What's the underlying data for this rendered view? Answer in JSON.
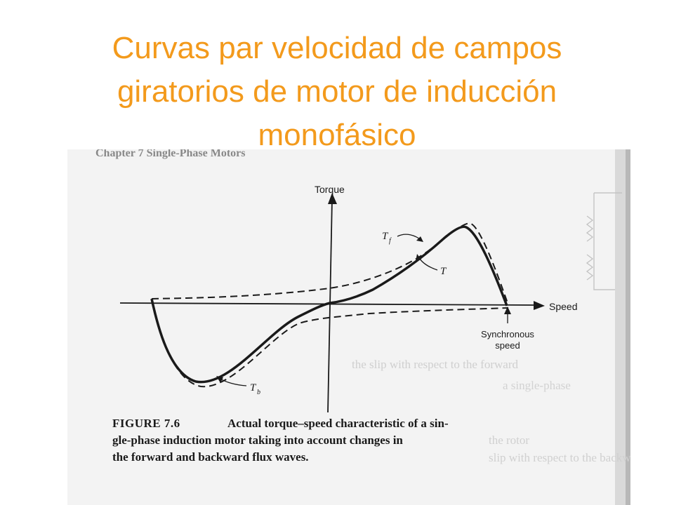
{
  "slide": {
    "title_lines": [
      "Curvas par velocidad de campos",
      "giratorios de motor de inducción",
      "monofásico"
    ]
  },
  "figure": {
    "running_header": "Chapter 7   Single-Phase Motors",
    "axis_y_label": "Torque",
    "axis_x_label": "Speed",
    "curve_labels": {
      "forward": "T",
      "forward_sub": "f",
      "resultant": "T",
      "backward": "T",
      "backward_sub": "b"
    },
    "sync_label_1": "Synchronous",
    "sync_label_2": "speed",
    "caption_number": "FIGURE 7.6",
    "caption_lines": [
      "Actual torque–speed characteristic of a sin-",
      "gle-phase induction motor taking into account changes in",
      "the forward and backward flux waves."
    ],
    "faint_right_lines": [
      "the slip with respect to the forward",
      "a single-phase",
      "the rotor",
      "slip with respect to the backward"
    ]
  }
}
